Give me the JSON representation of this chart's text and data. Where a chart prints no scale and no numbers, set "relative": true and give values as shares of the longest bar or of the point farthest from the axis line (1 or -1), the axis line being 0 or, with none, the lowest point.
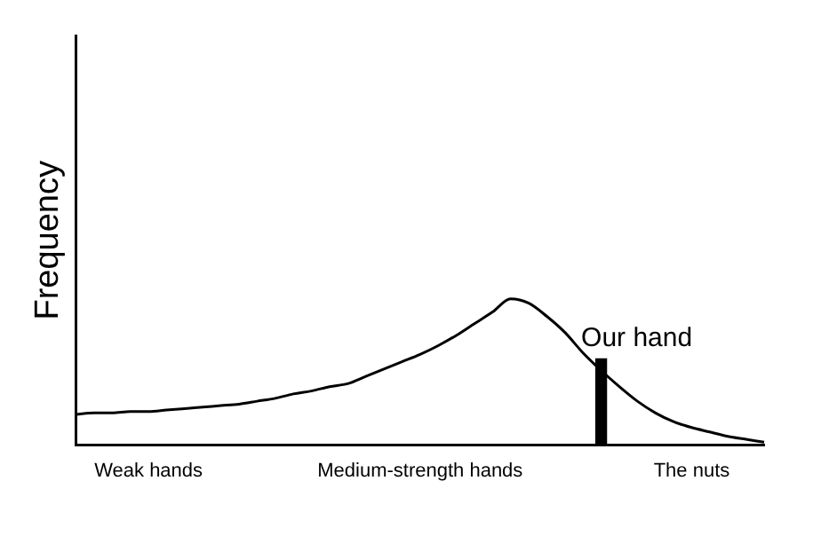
{
  "chart_data": {
    "type": "line",
    "relative": true,
    "ylabel": "Frequency",
    "legend": false,
    "grid": false,
    "marker": "none",
    "line_style": "solid",
    "categories": [
      null,
      null,
      null,
      null,
      "Weak hands",
      null,
      null,
      null,
      null,
      null,
      null,
      null,
      null,
      null,
      null,
      null,
      null,
      null,
      null,
      "Medium-strength hands",
      null,
      null,
      null,
      null,
      null,
      null,
      null,
      null,
      null,
      null,
      null,
      null,
      null,
      null,
      "The nuts",
      null,
      null,
      null,
      null
    ],
    "series": [
      {
        "color": "#000000",
        "values": [
          0.21,
          0.22,
          0.22,
          0.23,
          0.23,
          0.24,
          0.25,
          0.26,
          0.27,
          0.28,
          0.3,
          0.32,
          0.35,
          0.37,
          0.4,
          0.42,
          0.47,
          0.52,
          0.57,
          0.62,
          0.68,
          0.75,
          0.83,
          0.91,
          1,
          0.97,
          0.88,
          0.77,
          0.63,
          0.51,
          0.4,
          0.3,
          0.22,
          0.16,
          0.12,
          0.09,
          0.06,
          0.04,
          0.02
        ]
      },
      {
        "type": "bar",
        "name": "Our hand",
        "color": "#000000",
        "values": [
          null,
          null,
          null,
          null,
          null,
          null,
          null,
          null,
          null,
          null,
          null,
          null,
          null,
          null,
          null,
          null,
          null,
          null,
          null,
          null,
          null,
          null,
          null,
          null,
          null,
          null,
          null,
          null,
          null,
          0.59,
          null,
          null,
          null,
          null,
          null,
          null,
          null,
          null,
          null
        ]
      }
    ]
  }
}
